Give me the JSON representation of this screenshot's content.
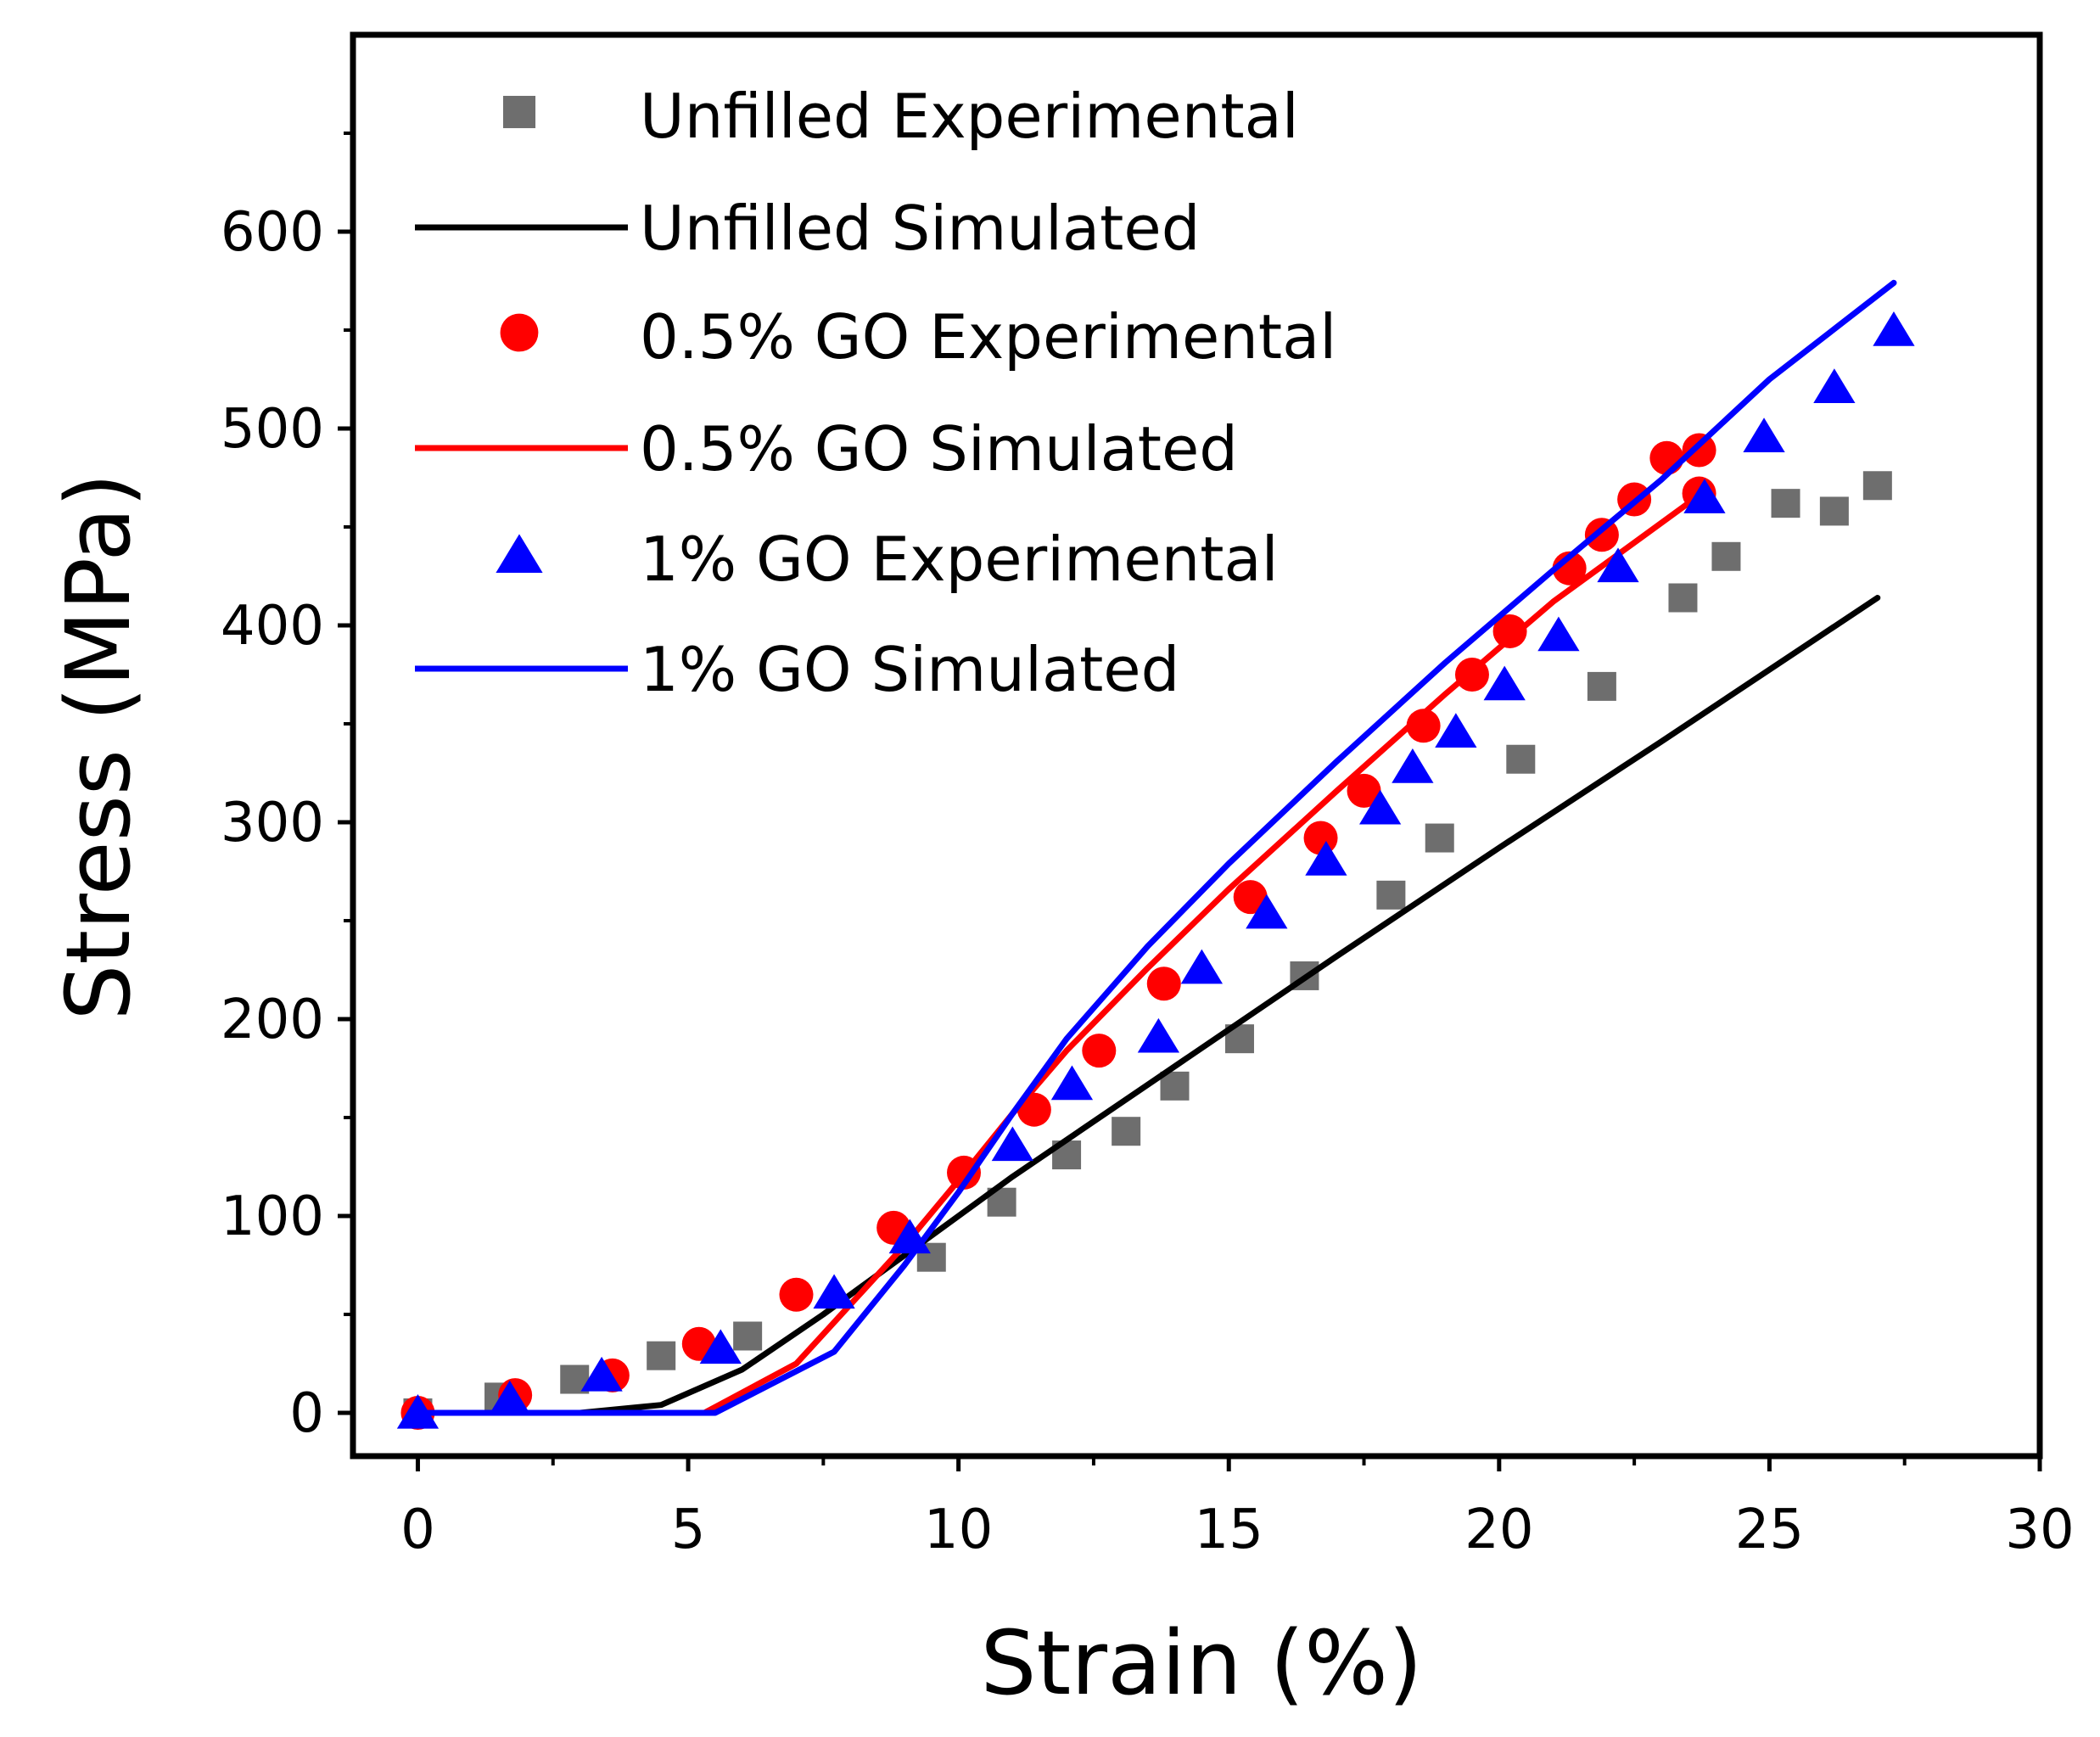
{
  "chart_data": {
    "type": "scatter",
    "title": "",
    "xlabel": "Strain (%)",
    "ylabel": "Stress (MPa)",
    "xlim": [
      -1.2,
      30
    ],
    "ylim": [
      -22,
      700
    ],
    "xticks": [
      0,
      5,
      10,
      15,
      20,
      25,
      30
    ],
    "yticks": [
      0,
      100,
      200,
      300,
      400,
      500,
      600
    ],
    "grid": false,
    "legend_position": "top-left",
    "colors": {
      "unfilled_marker": "#6e6e6e",
      "unfilled_line": "#000000",
      "go05": "#ff0000",
      "go1": "#0000ff",
      "frame": "#000000"
    },
    "series": [
      {
        "name": "Unfilled Experimental",
        "kind": "scatter",
        "marker": "square",
        "color": "#6e6e6e",
        "x": [
          0,
          1.5,
          2.9,
          4.5,
          6.1,
          9.5,
          10.8,
          12.0,
          13.1,
          14.0,
          15.2,
          16.4,
          18.0,
          18.9,
          20.4,
          21.9,
          23.4,
          24.2,
          25.3,
          26.2,
          27.0
        ],
        "y": [
          0,
          8,
          17,
          29,
          39,
          79,
          107,
          131,
          143,
          166,
          190,
          222,
          263,
          292,
          332,
          369,
          414,
          435,
          462,
          458,
          471
        ]
      },
      {
        "name": "Unfilled Simulated",
        "kind": "line",
        "color": "#000000",
        "x": [
          0,
          3.0,
          4.5,
          6.0,
          7.5,
          9.0,
          11.0,
          14.0,
          17.0,
          20.0,
          23.0,
          27.0
        ],
        "y": [
          0,
          0,
          4,
          22,
          50,
          80,
          120,
          176,
          232,
          287,
          341,
          414
        ]
      },
      {
        "name": "0.5% GO Experimental",
        "kind": "scatter",
        "marker": "circle",
        "color": "#ff0000",
        "x": [
          0,
          1.8,
          3.6,
          5.2,
          7.0,
          8.8,
          10.1,
          11.4,
          12.6,
          13.8,
          15.4,
          16.7,
          17.5,
          18.6,
          19.5,
          20.2,
          21.3,
          21.9,
          22.5,
          23.1,
          23.7,
          23.7
        ],
        "y": [
          0,
          9,
          19,
          35,
          60,
          94,
          122,
          154,
          184,
          218,
          262,
          292,
          316,
          349,
          375,
          397,
          429,
          446,
          464,
          485,
          489,
          467
        ]
      },
      {
        "name": "0.5% GO Simulated",
        "kind": "line",
        "color": "#ff0000",
        "x": [
          0,
          5.3,
          7.0,
          8.0,
          9.0,
          10.0,
          11.0,
          12.0,
          13.5,
          15.0,
          17.0,
          19.0,
          21.0,
          23.5
        ],
        "y": [
          0,
          0,
          25,
          55,
          85,
          118,
          152,
          184,
          226,
          266,
          316,
          365,
          412,
          462
        ]
      },
      {
        "name": "1% GO Experimental",
        "kind": "scatter",
        "marker": "triangle",
        "color": "#0000ff",
        "x": [
          0,
          1.7,
          3.4,
          5.6,
          7.7,
          9.1,
          11.0,
          12.1,
          13.7,
          14.5,
          15.7,
          16.8,
          17.8,
          18.4,
          19.2,
          20.1,
          21.1,
          22.2,
          23.8,
          24.9,
          26.2,
          27.3
        ],
        "y": [
          0,
          7,
          19,
          33,
          61,
          89,
          136,
          167,
          191,
          226,
          254,
          281,
          307,
          328,
          346,
          370,
          395,
          430,
          465,
          496,
          521,
          550
        ]
      },
      {
        "name": "1% GO Simulated",
        "kind": "line",
        "color": "#0000ff",
        "x": [
          0,
          5.5,
          7.7,
          9.0,
          10.0,
          11.0,
          12.0,
          13.5,
          15.0,
          17.0,
          19.0,
          21.0,
          23.0,
          25.0,
          27.3
        ],
        "y": [
          0,
          0,
          31,
          75,
          112,
          152,
          190,
          237,
          279,
          331,
          381,
          428,
          474,
          525,
          574
        ]
      }
    ]
  }
}
